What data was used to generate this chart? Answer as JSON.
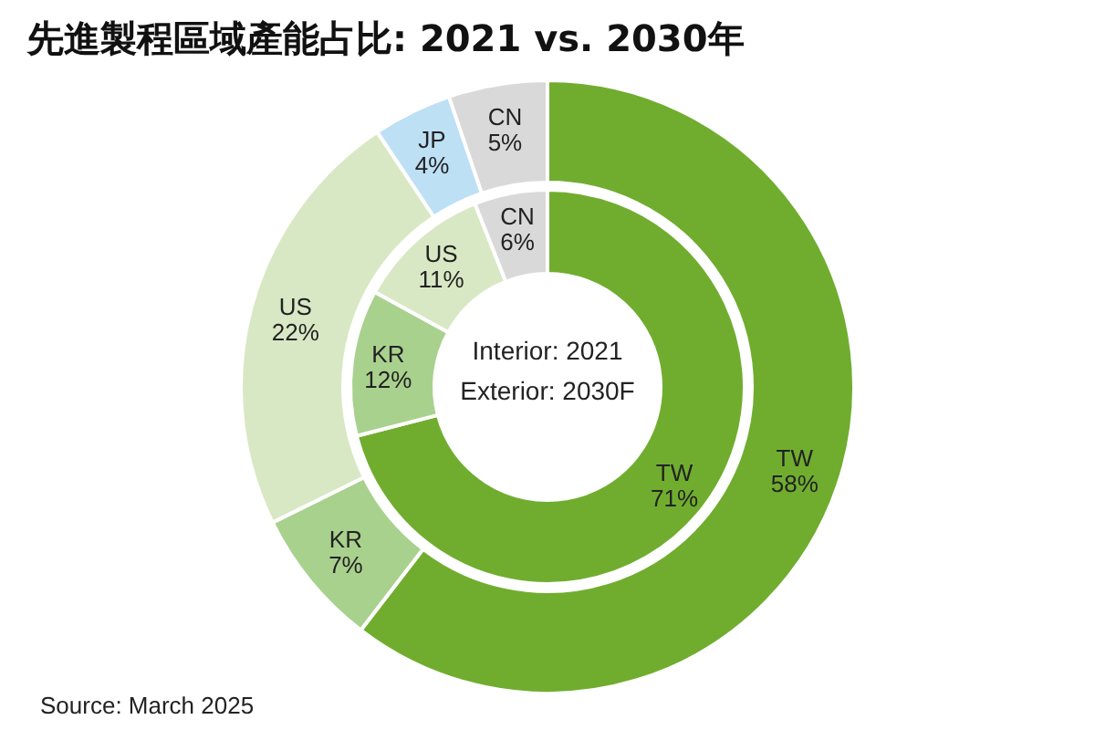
{
  "chart_data": [
    {
      "type": "donut",
      "title": "先進製程區域產能占比: 2021 vs. 2030年",
      "categories": [
        "TW",
        "KR",
        "US",
        "JP",
        "CN"
      ],
      "values": [
        58,
        7,
        22,
        4,
        5
      ],
      "value_labels": [
        "58%",
        "7%",
        "22%",
        "4%",
        "5%"
      ],
      "colors": [
        "#70ad2f",
        "#a9d18e",
        "#d9e8c4",
        "#bde0f5",
        "#d9d9d9"
      ],
      "annotations": [
        "Source: March 2025"
      ],
      "legend": false
    },
    {
      "type": "donut",
      "categories": [
        "TW",
        "KR",
        "US",
        "CN"
      ],
      "values": [
        71,
        12,
        11,
        6
      ],
      "value_labels": [
        "71%",
        "12%",
        "11%",
        "6%"
      ],
      "colors": [
        "#70ad2f",
        "#a9d18e",
        "#d9e8c4",
        "#d9d9d9"
      ],
      "annotations": [
        "Interior: 2021",
        "Exterior: 2030F"
      ],
      "legend": false
    }
  ]
}
